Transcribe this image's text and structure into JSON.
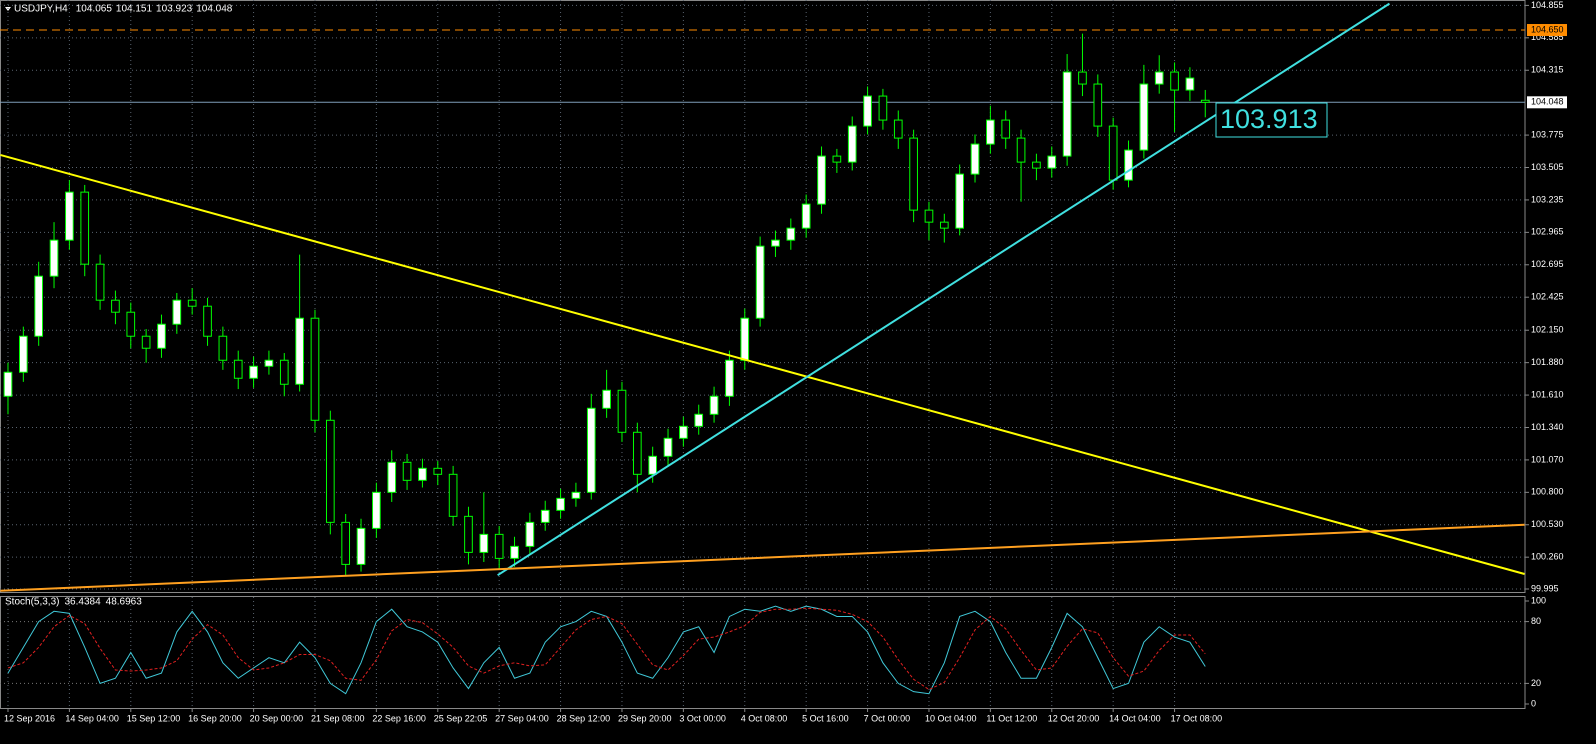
{
  "chart_data": {
    "type": "candlestick",
    "title": "USDJPY,H4",
    "bull_color": "#ffffff",
    "bear_color": "#000000",
    "wick_color": "#00ff00",
    "grid": true,
    "grid_color": "#5a6470",
    "xlim": [
      -0.52,
      98.83
    ],
    "ylim": [
      99.97,
      104.9
    ],
    "yticks": [
      104.855,
      104.585,
      104.315,
      103.775,
      103.505,
      103.235,
      102.965,
      102.695,
      102.425,
      {
        "value": 102.15,
        "label": "102.150"
      },
      {
        "value": 101.88,
        "label": "101.880"
      },
      {
        "value": 101.61,
        "label": "101.610"
      },
      {
        "value": 101.34,
        "label": "101.340"
      },
      {
        "value": 101.07,
        "label": "101.070"
      },
      {
        "value": 100.8,
        "label": "100.800"
      },
      {
        "value": 100.53,
        "label": "100.530"
      },
      {
        "value": 100.26,
        "label": "100.260"
      },
      99.995
    ],
    "xticks": [
      {
        "value": 0,
        "label": "12 Sep 2016"
      },
      {
        "value": 4,
        "label": "14 Sep 04:00"
      },
      {
        "value": 8,
        "label": "15 Sep 12:00"
      },
      {
        "value": 12,
        "label": "16 Sep 20:00"
      },
      {
        "value": 16,
        "label": "20 Sep 00:00"
      },
      {
        "value": 20,
        "label": "21 Sep 08:00"
      },
      {
        "value": 24,
        "label": "22 Sep 16:00"
      },
      {
        "value": 28,
        "label": "25 Sep 22:05"
      },
      {
        "value": 32,
        "label": "27 Sep 04:00"
      },
      {
        "value": 36,
        "label": "28 Sep 12:00"
      },
      {
        "value": 40,
        "label": "29 Sep 20:00"
      },
      {
        "value": 44,
        "label": "3 Oct 00:00"
      },
      {
        "value": 48,
        "label": "4 Oct 08:00"
      },
      {
        "value": 52,
        "label": "5 Oct 16:00"
      },
      {
        "value": 56,
        "label": "7 Oct 00:00"
      },
      {
        "value": 60,
        "label": "10 Oct 04:00"
      },
      {
        "value": 64,
        "label": "11 Oct 12:00"
      },
      {
        "value": 68,
        "label": "12 Oct 20:00"
      },
      {
        "value": 72,
        "label": "14 Oct 04:00"
      },
      {
        "value": 76,
        "label": "17 Oct 08:00"
      }
    ],
    "candles": [
      [
        101.6,
        101.88,
        101.45,
        101.8
      ],
      [
        101.8,
        102.18,
        101.72,
        102.1
      ],
      [
        102.1,
        102.72,
        102.02,
        102.6
      ],
      [
        102.6,
        103.05,
        102.5,
        102.9
      ],
      [
        102.9,
        103.4,
        102.82,
        103.3
      ],
      [
        103.3,
        103.36,
        102.6,
        102.7
      ],
      [
        102.7,
        102.78,
        102.32,
        102.4
      ],
      [
        102.4,
        102.48,
        102.2,
        102.3
      ],
      [
        102.3,
        102.38,
        102.0,
        102.1
      ],
      [
        102.1,
        102.16,
        101.88,
        102.0
      ],
      [
        102.0,
        102.28,
        101.92,
        102.2
      ],
      [
        102.2,
        102.46,
        102.12,
        102.4
      ],
      [
        102.4,
        102.5,
        102.28,
        102.35
      ],
      [
        102.35,
        102.42,
        102.02,
        102.1
      ],
      [
        102.1,
        102.18,
        101.82,
        101.9
      ],
      [
        101.9,
        101.98,
        101.66,
        101.75
      ],
      [
        101.75,
        101.93,
        101.67,
        101.85
      ],
      [
        101.85,
        101.98,
        101.78,
        101.9
      ],
      [
        101.9,
        101.96,
        101.6,
        101.7
      ],
      [
        101.7,
        102.78,
        101.64,
        102.25
      ],
      [
        102.25,
        102.32,
        101.3,
        101.4
      ],
      [
        101.4,
        101.48,
        100.45,
        100.55
      ],
      [
        100.55,
        100.62,
        100.1,
        100.2
      ],
      [
        100.2,
        100.58,
        100.14,
        100.5
      ],
      [
        100.5,
        100.88,
        100.42,
        100.8
      ],
      [
        100.8,
        101.15,
        100.72,
        101.05
      ],
      [
        101.05,
        101.12,
        100.82,
        100.9
      ],
      [
        100.9,
        101.08,
        100.84,
        101.0
      ],
      [
        101.0,
        101.06,
        100.86,
        100.95
      ],
      [
        100.95,
        101.02,
        100.52,
        100.6
      ],
      [
        100.6,
        100.68,
        100.2,
        100.3
      ],
      [
        100.3,
        100.8,
        100.22,
        100.45
      ],
      [
        100.45,
        100.52,
        100.16,
        100.25
      ],
      [
        100.25,
        100.43,
        100.18,
        100.35
      ],
      [
        100.35,
        100.63,
        100.28,
        100.55
      ],
      [
        100.55,
        100.73,
        100.48,
        100.65
      ],
      [
        100.65,
        100.83,
        100.58,
        100.75
      ],
      [
        100.75,
        100.88,
        100.68,
        100.8
      ],
      [
        100.8,
        101.62,
        100.74,
        101.5
      ],
      [
        101.5,
        101.82,
        101.42,
        101.65
      ],
      [
        101.65,
        101.72,
        101.22,
        101.3
      ],
      [
        101.3,
        101.38,
        100.8,
        100.95
      ],
      [
        100.95,
        101.18,
        100.88,
        101.1
      ],
      [
        101.1,
        101.33,
        101.02,
        101.25
      ],
      [
        101.25,
        101.43,
        101.18,
        101.35
      ],
      [
        101.35,
        101.53,
        101.28,
        101.45
      ],
      [
        101.45,
        101.68,
        101.38,
        101.6
      ],
      [
        101.6,
        101.98,
        101.52,
        101.9
      ],
      [
        101.9,
        102.33,
        101.82,
        102.25
      ],
      [
        102.25,
        102.93,
        102.18,
        102.85
      ],
      [
        102.85,
        102.98,
        102.76,
        102.9
      ],
      [
        102.9,
        103.08,
        102.82,
        103.0
      ],
      [
        103.0,
        103.28,
        102.92,
        103.2
      ],
      [
        103.2,
        103.68,
        103.12,
        103.6
      ],
      [
        103.6,
        103.66,
        103.46,
        103.55
      ],
      [
        103.55,
        103.93,
        103.48,
        103.85
      ],
      [
        103.85,
        104.18,
        103.78,
        104.1
      ],
      [
        104.1,
        104.16,
        103.82,
        103.9
      ],
      [
        103.9,
        103.98,
        103.66,
        103.75
      ],
      [
        103.75,
        103.82,
        103.05,
        103.15
      ],
      [
        103.15,
        103.22,
        102.9,
        103.05
      ],
      [
        103.05,
        103.12,
        102.88,
        103.0
      ],
      [
        103.0,
        103.53,
        102.94,
        103.45
      ],
      [
        103.45,
        103.78,
        103.38,
        103.7
      ],
      [
        103.7,
        104.02,
        103.62,
        103.9
      ],
      [
        103.9,
        103.98,
        103.66,
        103.75
      ],
      [
        103.75,
        103.82,
        103.22,
        103.55
      ],
      [
        103.55,
        103.62,
        103.4,
        103.5
      ],
      [
        103.5,
        103.68,
        103.42,
        103.6
      ],
      [
        103.6,
        104.45,
        103.52,
        104.3
      ],
      [
        104.3,
        104.62,
        104.1,
        104.2
      ],
      [
        104.2,
        104.28,
        103.76,
        103.85
      ],
      [
        103.85,
        103.92,
        103.32,
        103.4
      ],
      [
        103.4,
        103.73,
        103.34,
        103.65
      ],
      [
        103.65,
        104.36,
        103.58,
        104.2
      ],
      [
        104.2,
        104.44,
        104.12,
        104.3
      ],
      [
        104.3,
        104.38,
        103.8,
        104.15
      ],
      [
        104.15,
        104.34,
        104.06,
        104.25
      ],
      [
        104.065,
        104.151,
        103.923,
        104.048
      ]
    ],
    "levels": [
      {
        "value": 104.65,
        "label": "104.650",
        "color": "#ff8c00"
      }
    ],
    "current_color": "#7f9db9",
    "trendlines": [
      {
        "x": [
          -0.5,
          98.8
        ],
        "y": [
          103.61,
          100.12
        ],
        "color": "#ffff00"
      },
      {
        "x": [
          31.9,
          90.0
        ],
        "y": [
          100.11,
          104.87
        ],
        "color": "#40e0e0"
      },
      {
        "x": [
          -0.5,
          98.8
        ],
        "y": [
          99.98,
          100.53
        ],
        "color": "#ffa020"
      }
    ],
    "annotation": "103.913",
    "stochastic": {
      "title": "Stoch(5,3,3)",
      "ylim": [
        0,
        100
      ],
      "yticks": [
        100,
        80,
        20,
        0
      ],
      "series": [
        {
          "color": "#40c8d8",
          "values": [
            30,
            55,
            80,
            90,
            88,
            55,
            20,
            25,
            50,
            25,
            30,
            70,
            90,
            70,
            40,
            25,
            35,
            45,
            40,
            60,
            45,
            20,
            10,
            40,
            80,
            92,
            75,
            70,
            60,
            35,
            15,
            40,
            55,
            25,
            30,
            60,
            75,
            80,
            90,
            85,
            60,
            30,
            25,
            45,
            70,
            75,
            50,
            85,
            92,
            90,
            95,
            90,
            95,
            92,
            85,
            85,
            70,
            40,
            20,
            12,
            10,
            40,
            85,
            90,
            80,
            50,
            25,
            25,
            55,
            88,
            75,
            45,
            15,
            20,
            60,
            75,
            65,
            60,
            36.4384
          ]
        },
        {
          "color": "#e02020",
          "values": [
            35,
            40,
            55,
            75,
            86,
            78,
            54,
            33,
            32,
            33,
            35,
            42,
            63,
            77,
            67,
            45,
            33,
            35,
            40,
            48,
            48,
            42,
            25,
            23,
            43,
            71,
            82,
            79,
            68,
            55,
            37,
            30,
            37,
            40,
            37,
            38,
            55,
            72,
            82,
            85,
            78,
            58,
            38,
            33,
            47,
            63,
            65,
            70,
            76,
            89,
            92,
            92,
            93,
            92,
            91,
            87,
            80,
            65,
            43,
            24,
            14,
            21,
            45,
            72,
            85,
            73,
            52,
            33,
            35,
            56,
            73,
            69,
            45,
            27,
            32,
            52,
            67,
            67,
            48.6963
          ]
        }
      ]
    }
  }
}
